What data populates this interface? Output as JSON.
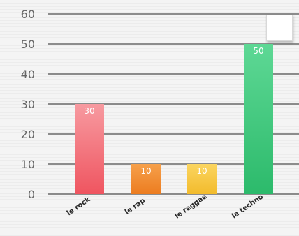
{
  "chart_data": {
    "type": "bar",
    "categories": [
      "le rock",
      "le rap",
      "le reggae",
      "la techno"
    ],
    "values": [
      30,
      10,
      10,
      50
    ],
    "ylim": [
      0,
      60
    ],
    "yticks": [
      0,
      10,
      20,
      30,
      40,
      50,
      60
    ],
    "grid": true,
    "legend": "top-right",
    "colors": [
      [
        "#f79aa0",
        "#ef5560"
      ],
      [
        "#f6a04a",
        "#ec7c20"
      ],
      [
        "#fbd560",
        "#f2bb2c"
      ],
      [
        "#5ed895",
        "#2cba6b"
      ]
    ]
  }
}
